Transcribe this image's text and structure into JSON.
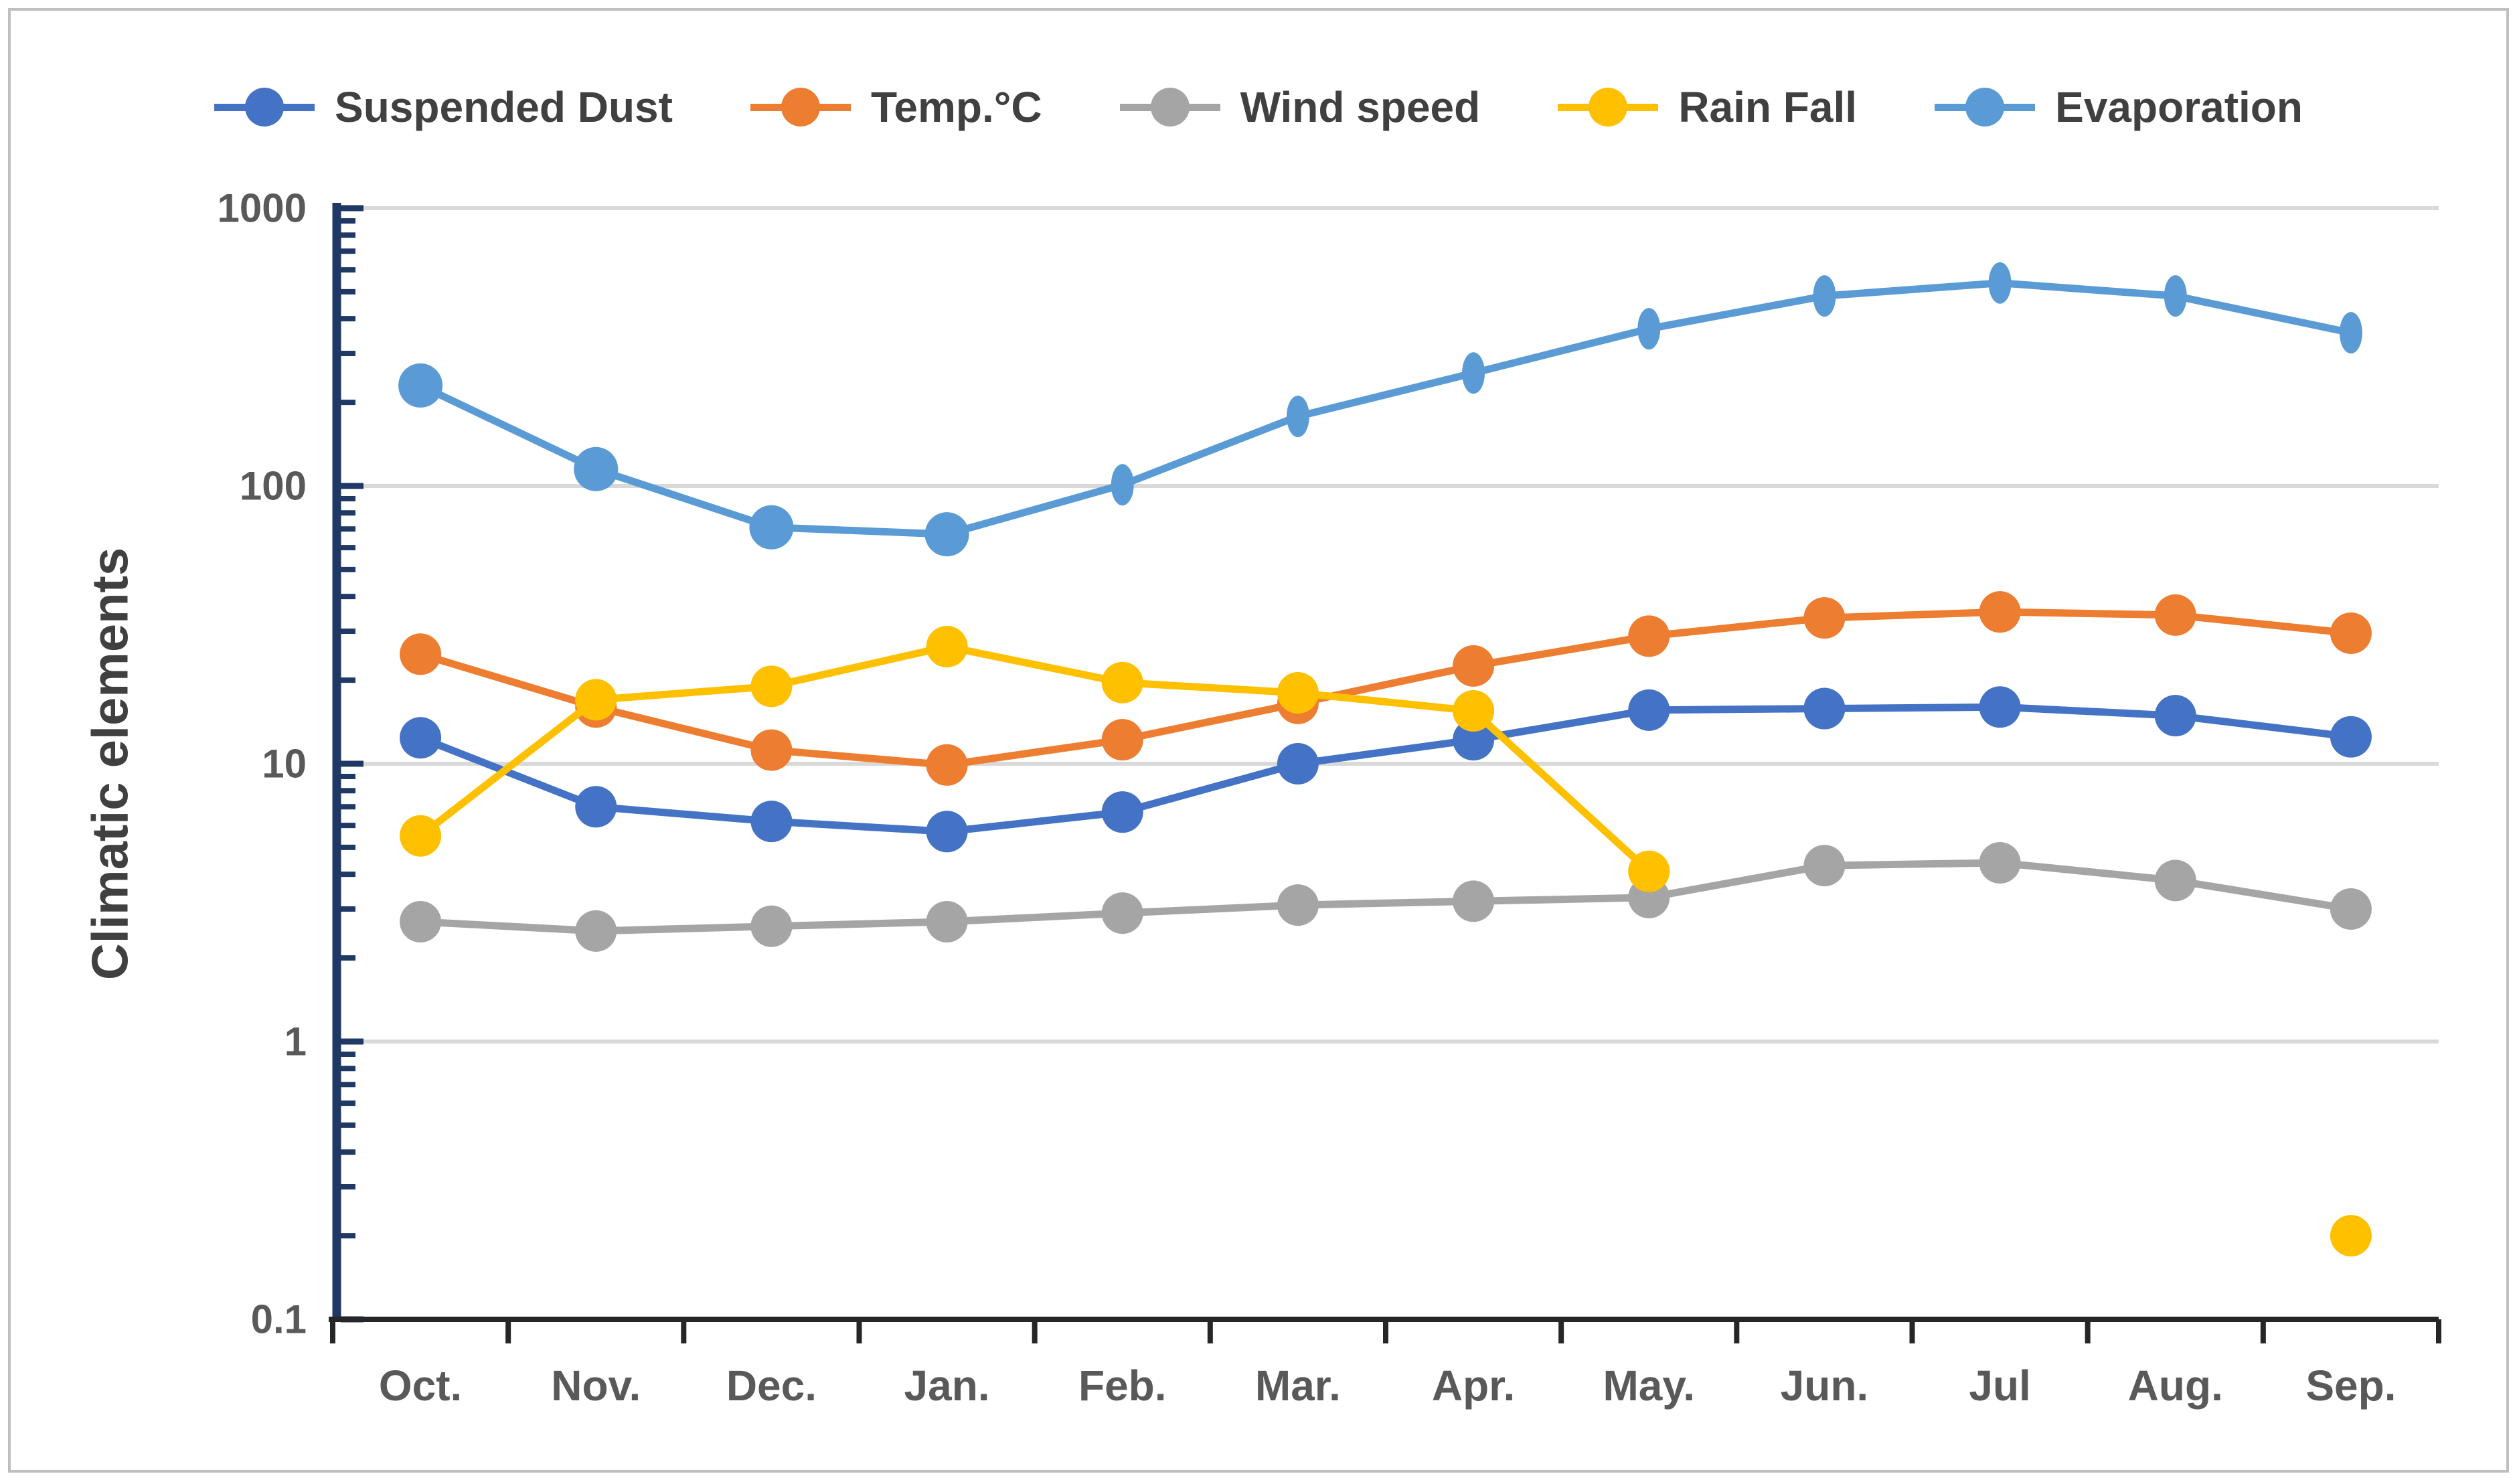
{
  "y_axis": {
    "title": "Climatic elements",
    "tick_labels": [
      "1000",
      "100",
      "10",
      "1",
      "0.1"
    ],
    "tick_values": [
      1000,
      100,
      10,
      1,
      0.1
    ]
  },
  "chart_data": {
    "type": "line",
    "y_scale": "log10",
    "ylim": [
      0.1,
      1000
    ],
    "grid": true,
    "gridline_values": [
      1000,
      100,
      10,
      1
    ],
    "legend_position": "top",
    "x_categories": [
      "Oct.",
      "Nov.",
      "Dec.",
      "Jan.",
      "Feb.",
      "Mar.",
      "Apr.",
      "May.",
      "Jun.",
      "Jul",
      "Aug.",
      "Sep."
    ],
    "series": [
      {
        "name": "Suspended Dust",
        "color": "#4472C4",
        "values": [
          12.4,
          7,
          6.2,
          5.7,
          6.7,
          10,
          12.2,
          15.6,
          15.8,
          16,
          14.9,
          12.5
        ]
      },
      {
        "name": "Temp.°C",
        "color": "#ED7D31",
        "values": [
          24.8,
          16,
          11.2,
          9.9,
          12.2,
          16.5,
          22.5,
          28.8,
          33.5,
          35.2,
          34.3,
          29.5
        ]
      },
      {
        "name": "Wind speed",
        "color": "#A5A5A5",
        "values": [
          2.7,
          2.5,
          2.6,
          2.7,
          2.9,
          3.1,
          3.2,
          3.3,
          4.3,
          4.4,
          3.8,
          3
        ]
      },
      {
        "name": "Rain Fall",
        "color": "#FFC000",
        "values": [
          5.5,
          17,
          19,
          26.4,
          19.6,
          18,
          15.5,
          4.1,
          null,
          null,
          null,
          0.2
        ]
      },
      {
        "name": "Evaporation",
        "color": "#5B9BD5",
        "values": [
          230,
          115,
          71,
          67,
          101,
          178,
          255,
          368,
          483,
          538,
          483,
          356
        ]
      }
    ]
  },
  "colors": {
    "y_axis_line": "#1F3864",
    "x_axis_line": "#262626",
    "gridline": "#D9D9D9",
    "tick_label": "#595959",
    "axis_title": "#404040",
    "frame_border": "#BFBFBF"
  }
}
